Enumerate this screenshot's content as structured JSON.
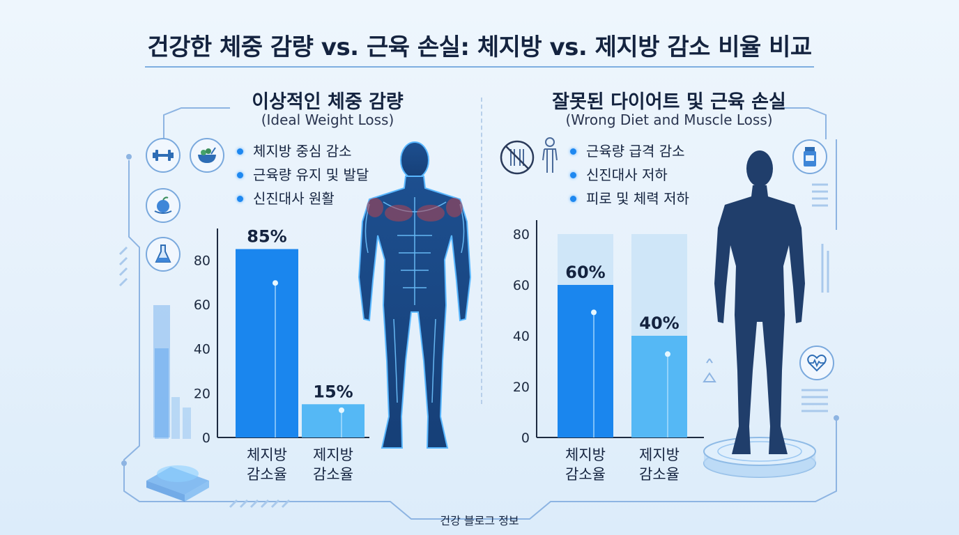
{
  "title": "건강한 체중 감량 vs. 근육 손실: 체지방 vs. 제지방 감소 비율 비교",
  "footer": "건강 블로그 정보",
  "left": {
    "title": "이상적인 체중 감량",
    "subtitle": "(Ideal Weight Loss)",
    "bullets": [
      "체지방 중심 감소",
      "근육량 유지 및 발달",
      "신진대사 원활"
    ],
    "icons": [
      "dumbbell-icon",
      "salad-bowl-icon",
      "apple-icon",
      "flask-icon"
    ]
  },
  "right": {
    "title": "잘못된 다이어트 및 근육 손실",
    "subtitle": "(Wrong Diet and Muscle Loss)",
    "bullets": [
      "근육량 급격 감소",
      "신진대사 저하",
      "피로 및 체력 저하"
    ],
    "icons": [
      "no-food-icon",
      "weak-person-icon",
      "pill-bottle-icon",
      "heart-pulse-icon"
    ]
  },
  "colors": {
    "bar_dark": "#1a86ee",
    "bar_light": "#55b8f5",
    "bar_bg": "#cfe6f8",
    "accent": "#1e88f0"
  },
  "chart_data": [
    {
      "type": "bar",
      "categories": [
        "체지방\n감소율",
        "제지방\n감소율"
      ],
      "values": [
        85,
        15
      ],
      "labels": [
        "85%",
        "15%"
      ],
      "yticks": [
        0,
        20,
        40,
        60,
        80
      ],
      "ylim": [
        0,
        88
      ],
      "grid": false
    },
    {
      "type": "bar",
      "categories": [
        "체지방\n감소율",
        "제지방\n감소율"
      ],
      "values": [
        60,
        40
      ],
      "labels": [
        "60%",
        "40%"
      ],
      "background_values": [
        80,
        80
      ],
      "yticks": [
        0,
        20,
        40,
        60,
        80
      ],
      "ylim": [
        0,
        80
      ],
      "grid": false
    }
  ]
}
